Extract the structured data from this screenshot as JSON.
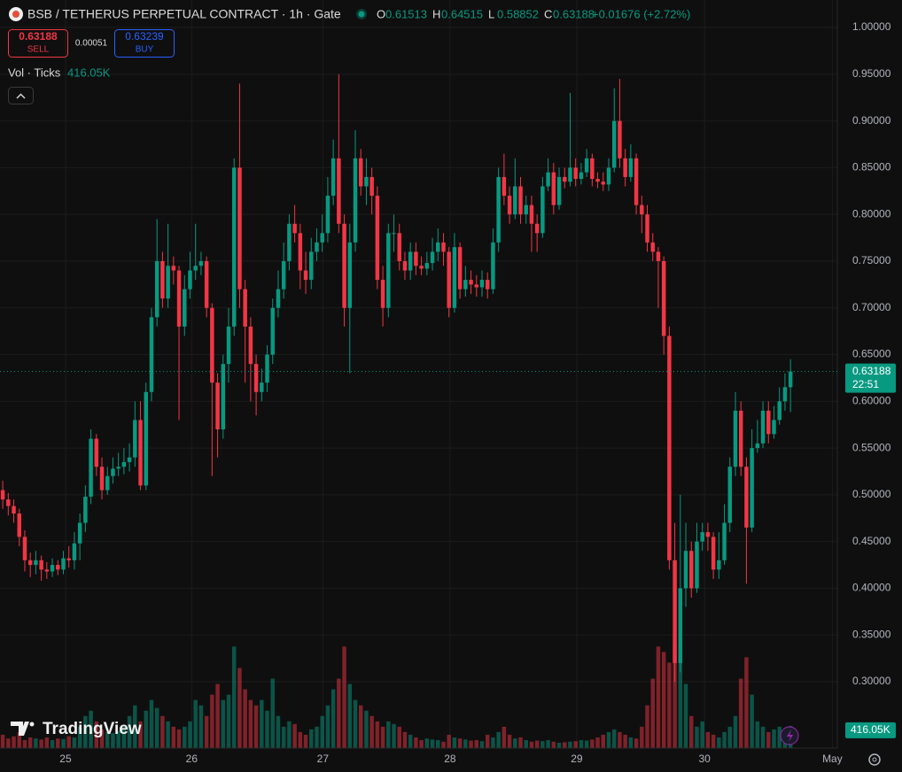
{
  "header": {
    "title": "BSB / TETHERUS PERPETUAL CONTRACT · 1h · Gate",
    "ohlc": [
      {
        "key": "O",
        "value": "0.61513"
      },
      {
        "key": "H",
        "value": "0.64515"
      },
      {
        "key": "L",
        "value": "0.58852"
      },
      {
        "key": "C",
        "value": "0.63188"
      }
    ],
    "change": "+0.01676 (+2.72%)",
    "sell_price": "0.63188",
    "sell": "SELL",
    "spread": "0.00051",
    "buy_price": "0.63239",
    "buy": "BUY",
    "volume_title": "Vol · Ticks",
    "volume_value": "416.05K",
    "brand": "TradingView"
  },
  "chart_data": {
    "type": "candlestick",
    "up_color": "#089981",
    "down_color": "#f23645",
    "grid": true,
    "ylim": [
      0.229,
      1.0294
    ],
    "yticks": [
      {
        "value": 1.0,
        "label": "1.00000"
      },
      {
        "value": 0.95,
        "label": "0.95000"
      },
      {
        "value": 0.9,
        "label": "0.90000"
      },
      {
        "value": 0.85,
        "label": "0.85000"
      },
      {
        "value": 0.8,
        "label": "0.80000"
      },
      {
        "value": 0.75,
        "label": "0.75000"
      },
      {
        "value": 0.7,
        "label": "0.70000"
      },
      {
        "value": 0.65,
        "label": "0.65000"
      },
      {
        "value": 0.6,
        "label": "0.60000"
      },
      {
        "value": 0.55,
        "label": "0.55000"
      },
      {
        "value": 0.5,
        "label": "0.50000"
      },
      {
        "value": 0.45,
        "label": "0.45000"
      },
      {
        "value": 0.4,
        "label": "0.40000"
      },
      {
        "value": 0.35,
        "label": "0.35000"
      },
      {
        "value": 0.3,
        "label": "0.30000"
      }
    ],
    "xlim": [
      -0.5,
      151.5
    ],
    "xticks": [
      {
        "value": 11.4,
        "label": "25"
      },
      {
        "value": 34.3,
        "label": "26"
      },
      {
        "value": 58.1,
        "label": "27"
      },
      {
        "value": 81.2,
        "label": "28"
      },
      {
        "value": 104.2,
        "label": "29"
      },
      {
        "value": 127.4,
        "label": "30"
      },
      {
        "value": 150.6,
        "label": "May"
      }
    ],
    "open": [
      0.505,
      0.495,
      0.488,
      0.48,
      0.455,
      0.43,
      0.425,
      0.43,
      0.42,
      0.418,
      0.425,
      0.42,
      0.432,
      0.43,
      0.448,
      0.47,
      0.498,
      0.56,
      0.53,
      0.505,
      0.52,
      0.528,
      0.53,
      0.535,
      0.54,
      0.58,
      0.51,
      0.61,
      0.69,
      0.75,
      0.71,
      0.745,
      0.74,
      0.68,
      0.72,
      0.74,
      0.745,
      0.75,
      0.7,
      0.62,
      0.57,
      0.64,
      0.68,
      0.85,
      0.72,
      0.68,
      0.64,
      0.61,
      0.62,
      0.65,
      0.7,
      0.72,
      0.75,
      0.79,
      0.78,
      0.74,
      0.73,
      0.76,
      0.77,
      0.78,
      0.82,
      0.86,
      0.79,
      0.7,
      0.77,
      0.86,
      0.83,
      0.84,
      0.82,
      0.73,
      0.7,
      0.78,
      0.78,
      0.75,
      0.74,
      0.76,
      0.745,
      0.742,
      0.748,
      0.76,
      0.77,
      0.76,
      0.7,
      0.765,
      0.72,
      0.73,
      0.725,
      0.722,
      0.73,
      0.72,
      0.77,
      0.84,
      0.82,
      0.8,
      0.83,
      0.8,
      0.81,
      0.79,
      0.78,
      0.83,
      0.845,
      0.81,
      0.84,
      0.835,
      0.85,
      0.838,
      0.845,
      0.86,
      0.838,
      0.835,
      0.832,
      0.85,
      0.9,
      0.86,
      0.84,
      0.86,
      0.81,
      0.8,
      0.77,
      0.76,
      0.75,
      0.67,
      0.43,
      0.32,
      0.4,
      0.44,
      0.4,
      0.45,
      0.46,
      0.455,
      0.42,
      0.43,
      0.47,
      0.53,
      0.59,
      0.53,
      0.465,
      0.55,
      0.555,
      0.59,
      0.565,
      0.58,
      0.6,
      0.61513
    ],
    "high": [
      0.515,
      0.502,
      0.495,
      0.485,
      0.462,
      0.438,
      0.44,
      0.435,
      0.428,
      0.432,
      0.43,
      0.44,
      0.445,
      0.46,
      0.48,
      0.51,
      0.57,
      0.565,
      0.54,
      0.53,
      0.54,
      0.545,
      0.55,
      0.555,
      0.6,
      0.6,
      0.62,
      0.7,
      0.795,
      0.76,
      0.79,
      0.755,
      0.745,
      0.735,
      0.76,
      0.79,
      0.76,
      0.755,
      0.705,
      0.63,
      0.65,
      0.7,
      0.86,
      0.94,
      0.73,
      0.69,
      0.65,
      0.635,
      0.66,
      0.71,
      0.74,
      0.77,
      0.8,
      0.81,
      0.79,
      0.76,
      0.775,
      0.785,
      0.8,
      0.84,
      0.88,
      0.95,
      0.8,
      0.79,
      0.89,
      0.87,
      0.86,
      0.85,
      0.83,
      0.745,
      0.79,
      0.8,
      0.79,
      0.76,
      0.77,
      0.77,
      0.755,
      0.76,
      0.775,
      0.785,
      0.78,
      0.765,
      0.78,
      0.77,
      0.745,
      0.74,
      0.735,
      0.74,
      0.738,
      0.785,
      0.85,
      0.865,
      0.83,
      0.86,
      0.84,
      0.82,
      0.82,
      0.8,
      0.84,
      0.86,
      0.855,
      0.85,
      0.85,
      0.93,
      0.86,
      0.855,
      0.87,
      0.865,
      0.845,
      0.845,
      0.86,
      0.935,
      0.945,
      0.87,
      0.875,
      0.865,
      0.82,
      0.81,
      0.78,
      0.765,
      0.755,
      0.68,
      0.47,
      0.5,
      0.47,
      0.45,
      0.47,
      0.47,
      0.47,
      0.46,
      0.46,
      0.49,
      0.54,
      0.61,
      0.6,
      0.54,
      0.57,
      0.58,
      0.6,
      0.6,
      0.595,
      0.615,
      0.63,
      0.64515
    ],
    "low": [
      0.485,
      0.478,
      0.47,
      0.445,
      0.418,
      0.412,
      0.415,
      0.408,
      0.41,
      0.412,
      0.414,
      0.415,
      0.422,
      0.42,
      0.43,
      0.46,
      0.49,
      0.52,
      0.495,
      0.5,
      0.512,
      0.52,
      0.522,
      0.525,
      0.53,
      0.505,
      0.505,
      0.6,
      0.68,
      0.7,
      0.7,
      0.725,
      0.58,
      0.67,
      0.71,
      0.73,
      0.735,
      0.69,
      0.52,
      0.54,
      0.56,
      0.62,
      0.67,
      0.7,
      0.62,
      0.6,
      0.585,
      0.6,
      0.61,
      0.64,
      0.69,
      0.71,
      0.74,
      0.77,
      0.72,
      0.715,
      0.72,
      0.75,
      0.76,
      0.77,
      0.81,
      0.78,
      0.68,
      0.63,
      0.76,
      0.82,
      0.81,
      0.8,
      0.72,
      0.68,
      0.69,
      0.76,
      0.74,
      0.73,
      0.73,
      0.735,
      0.735,
      0.735,
      0.74,
      0.75,
      0.745,
      0.69,
      0.695,
      0.71,
      0.712,
      0.715,
      0.712,
      0.712,
      0.71,
      0.715,
      0.76,
      0.81,
      0.79,
      0.795,
      0.79,
      0.79,
      0.76,
      0.76,
      0.775,
      0.825,
      0.8,
      0.805,
      0.828,
      0.83,
      0.83,
      0.832,
      0.84,
      0.83,
      0.828,
      0.825,
      0.825,
      0.845,
      0.85,
      0.83,
      0.835,
      0.8,
      0.78,
      0.76,
      0.75,
      0.7,
      0.65,
      0.42,
      0.3,
      0.31,
      0.38,
      0.39,
      0.395,
      0.44,
      0.44,
      0.41,
      0.41,
      0.425,
      0.46,
      0.52,
      0.52,
      0.405,
      0.46,
      0.545,
      0.55,
      0.555,
      0.56,
      0.575,
      0.59,
      0.58852
    ],
    "close": [
      0.495,
      0.488,
      0.48,
      0.455,
      0.43,
      0.425,
      0.43,
      0.42,
      0.418,
      0.425,
      0.42,
      0.432,
      0.43,
      0.448,
      0.47,
      0.498,
      0.56,
      0.53,
      0.505,
      0.52,
      0.528,
      0.53,
      0.535,
      0.54,
      0.58,
      0.51,
      0.61,
      0.69,
      0.75,
      0.71,
      0.745,
      0.74,
      0.68,
      0.72,
      0.74,
      0.745,
      0.75,
      0.7,
      0.62,
      0.57,
      0.64,
      0.68,
      0.85,
      0.72,
      0.68,
      0.64,
      0.61,
      0.62,
      0.65,
      0.7,
      0.72,
      0.75,
      0.79,
      0.78,
      0.74,
      0.73,
      0.76,
      0.77,
      0.78,
      0.82,
      0.86,
      0.79,
      0.7,
      0.77,
      0.86,
      0.83,
      0.84,
      0.82,
      0.73,
      0.7,
      0.78,
      0.78,
      0.75,
      0.74,
      0.76,
      0.745,
      0.742,
      0.748,
      0.76,
      0.77,
      0.76,
      0.7,
      0.765,
      0.72,
      0.73,
      0.725,
      0.722,
      0.73,
      0.72,
      0.77,
      0.84,
      0.82,
      0.8,
      0.83,
      0.8,
      0.81,
      0.79,
      0.78,
      0.83,
      0.845,
      0.81,
      0.84,
      0.835,
      0.85,
      0.838,
      0.845,
      0.86,
      0.838,
      0.835,
      0.832,
      0.85,
      0.9,
      0.86,
      0.84,
      0.86,
      0.81,
      0.8,
      0.77,
      0.76,
      0.75,
      0.67,
      0.43,
      0.32,
      0.4,
      0.44,
      0.4,
      0.45,
      0.46,
      0.455,
      0.42,
      0.43,
      0.47,
      0.53,
      0.59,
      0.53,
      0.465,
      0.55,
      0.555,
      0.59,
      0.565,
      0.58,
      0.6,
      0.61513,
      0.63188
    ],
    "volume": [
      250,
      180,
      220,
      300,
      150,
      200,
      180,
      160,
      200,
      150,
      180,
      170,
      220,
      200,
      400,
      600,
      700,
      500,
      350,
      300,
      280,
      320,
      400,
      600,
      800,
      500,
      700,
      900,
      750,
      600,
      500,
      400,
      350,
      400,
      500,
      900,
      800,
      600,
      1000,
      1200,
      900,
      1000,
      1900,
      1500,
      1100,
      900,
      800,
      900,
      700,
      1300,
      600,
      400,
      500,
      450,
      300,
      250,
      350,
      400,
      600,
      800,
      1100,
      1300,
      1900,
      1200,
      900,
      800,
      700,
      600,
      500,
      400,
      500,
      450,
      400,
      300,
      250,
      200,
      150,
      180,
      160,
      150,
      120,
      250,
      200,
      180,
      160,
      140,
      150,
      130,
      250,
      200,
      300,
      400,
      250,
      180,
      200,
      150,
      120,
      140,
      130,
      150,
      120,
      100,
      110,
      120,
      130,
      150,
      140,
      160,
      200,
      250,
      300,
      350,
      300,
      250,
      200,
      180,
      400,
      800,
      1300,
      1900,
      1800,
      1600,
      1900,
      1800,
      1200,
      600,
      400,
      500,
      300,
      250,
      200,
      300,
      400,
      600,
      1300,
      1700,
      1000,
      500,
      400,
      300,
      350,
      400,
      200,
      416.05
    ],
    "volume_lim": [
      0,
      14000
    ],
    "last_price": {
      "label": "0.63188",
      "countdown": "22:51"
    }
  }
}
